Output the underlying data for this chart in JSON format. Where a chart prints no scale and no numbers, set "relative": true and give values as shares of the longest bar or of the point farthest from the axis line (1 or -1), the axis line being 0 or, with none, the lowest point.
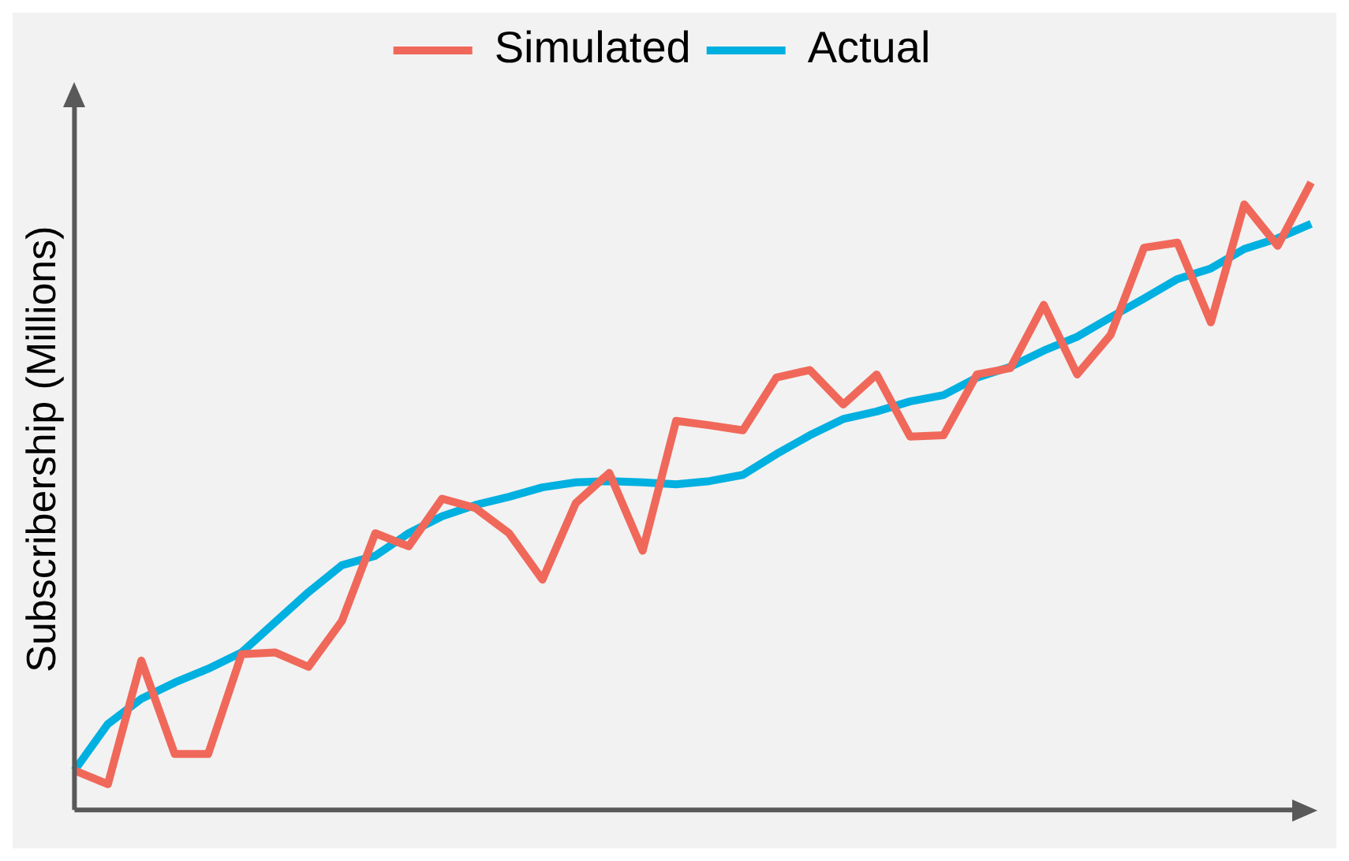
{
  "chart_data": {
    "type": "line",
    "relative": true,
    "ylabel": "Subscribership (Millions)",
    "legend": "top",
    "grid": false,
    "marker": "none",
    "line_style": "solid",
    "categories": [
      null,
      null,
      null,
      null,
      null,
      null,
      null,
      null,
      null,
      null,
      null,
      null,
      null,
      null,
      null,
      null,
      null,
      null,
      null,
      null,
      null,
      null,
      null,
      null,
      null,
      null,
      null,
      null,
      null,
      null,
      null,
      null,
      null,
      null,
      null,
      null,
      null,
      null
    ],
    "series": [
      {
        "name": "Simulated",
        "color": "#f0685a",
        "values": [
          0.063,
          0.041,
          0.238,
          0.089,
          0.089,
          0.248,
          0.251,
          0.228,
          0.301,
          0.441,
          0.42,
          0.496,
          0.481,
          0.441,
          0.367,
          0.489,
          0.537,
          0.413,
          0.62,
          0.613,
          0.605,
          0.689,
          0.701,
          0.646,
          0.694,
          0.595,
          0.597,
          0.694,
          0.704,
          0.805,
          0.694,
          0.757,
          0.896,
          0.904,
          0.777,
          0.965,
          0.899,
          1
        ]
      },
      {
        "name": "Actual",
        "color": "#00b0e0",
        "values": [
          0.063,
          0.137,
          0.177,
          0.203,
          0.225,
          0.251,
          0.299,
          0.347,
          0.39,
          0.405,
          0.441,
          0.468,
          0.486,
          0.499,
          0.514,
          0.522,
          0.524,
          0.522,
          0.519,
          0.524,
          0.534,
          0.567,
          0.597,
          0.623,
          0.635,
          0.651,
          0.661,
          0.689,
          0.706,
          0.732,
          0.754,
          0.785,
          0.815,
          0.846,
          0.863,
          0.894,
          0.911,
          0.934
        ]
      }
    ]
  }
}
